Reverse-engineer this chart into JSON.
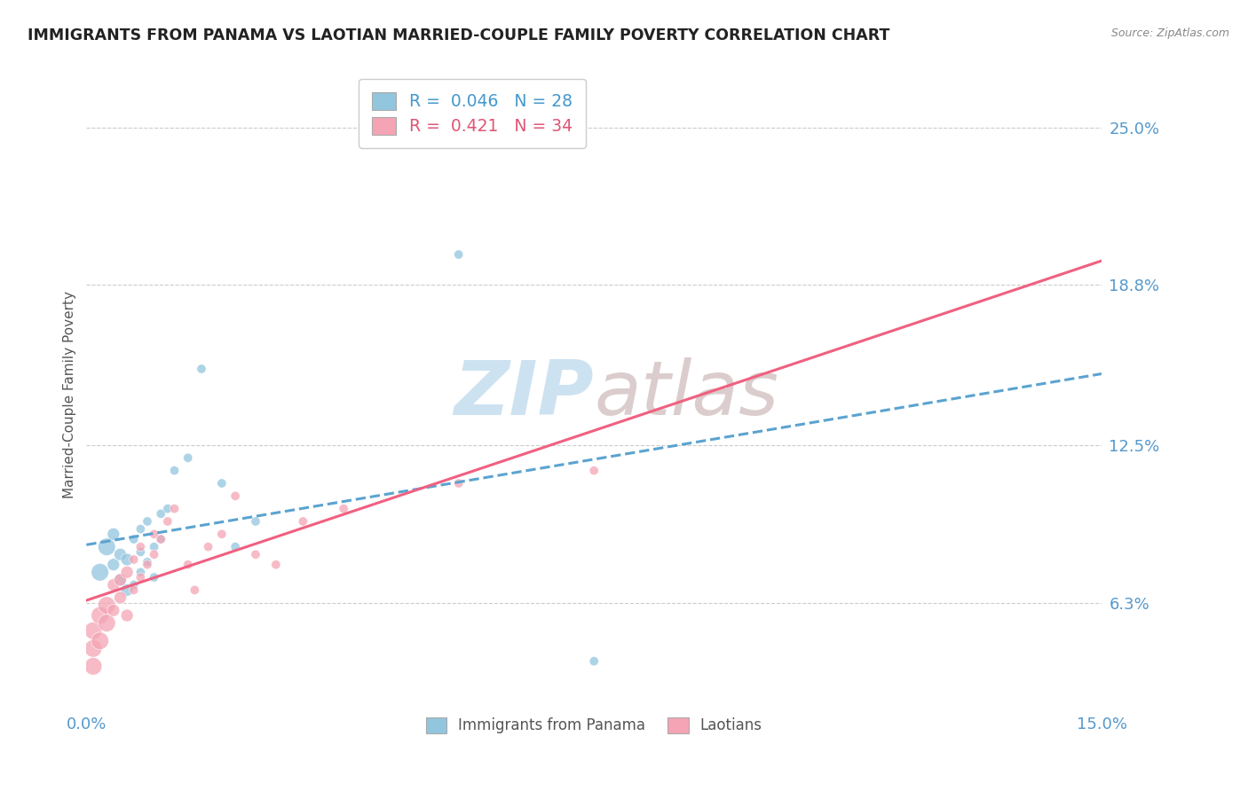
{
  "title": "IMMIGRANTS FROM PANAMA VS LAOTIAN MARRIED-COUPLE FAMILY POVERTY CORRELATION CHART",
  "source": "Source: ZipAtlas.com",
  "ylabel": "Married-Couple Family Poverty",
  "ytick_labels": [
    "6.3%",
    "12.5%",
    "18.8%",
    "25.0%"
  ],
  "ytick_values": [
    0.063,
    0.125,
    0.188,
    0.25
  ],
  "xlim": [
    0.0,
    0.15
  ],
  "ylim": [
    0.02,
    0.27
  ],
  "color_blue": "#92c5de",
  "color_pink": "#f4a4b4",
  "color_blue_line": "#5ba3d0",
  "color_pink_line": "#f06080",
  "watermark_color": "#ddeeff",
  "panama_x": [
    0.002,
    0.003,
    0.004,
    0.004,
    0.005,
    0.005,
    0.006,
    0.006,
    0.007,
    0.007,
    0.008,
    0.008,
    0.008,
    0.009,
    0.009,
    0.01,
    0.01,
    0.011,
    0.011,
    0.012,
    0.013,
    0.015,
    0.017,
    0.02,
    0.022,
    0.025,
    0.055,
    0.075
  ],
  "panama_y": [
    0.075,
    0.085,
    0.078,
    0.09,
    0.082,
    0.072,
    0.068,
    0.08,
    0.07,
    0.088,
    0.075,
    0.083,
    0.092,
    0.079,
    0.095,
    0.085,
    0.073,
    0.098,
    0.088,
    0.1,
    0.115,
    0.12,
    0.155,
    0.11,
    0.085,
    0.095,
    0.2,
    0.04
  ],
  "laotian_x": [
    0.001,
    0.001,
    0.001,
    0.002,
    0.002,
    0.003,
    0.003,
    0.004,
    0.004,
    0.005,
    0.005,
    0.006,
    0.006,
    0.007,
    0.007,
    0.008,
    0.008,
    0.009,
    0.01,
    0.01,
    0.011,
    0.012,
    0.013,
    0.015,
    0.016,
    0.018,
    0.02,
    0.022,
    0.025,
    0.028,
    0.032,
    0.038,
    0.055,
    0.075
  ],
  "laotian_y": [
    0.045,
    0.038,
    0.052,
    0.048,
    0.058,
    0.055,
    0.062,
    0.06,
    0.07,
    0.065,
    0.072,
    0.058,
    0.075,
    0.068,
    0.08,
    0.073,
    0.085,
    0.078,
    0.082,
    0.09,
    0.088,
    0.095,
    0.1,
    0.078,
    0.068,
    0.085,
    0.09,
    0.105,
    0.082,
    0.078,
    0.095,
    0.1,
    0.11,
    0.115
  ],
  "panama_big_marker_indices": [
    0,
    1,
    2,
    3,
    4,
    5
  ],
  "laotian_big_marker_indices": [
    0,
    1,
    2,
    3,
    4,
    5,
    6,
    7
  ]
}
